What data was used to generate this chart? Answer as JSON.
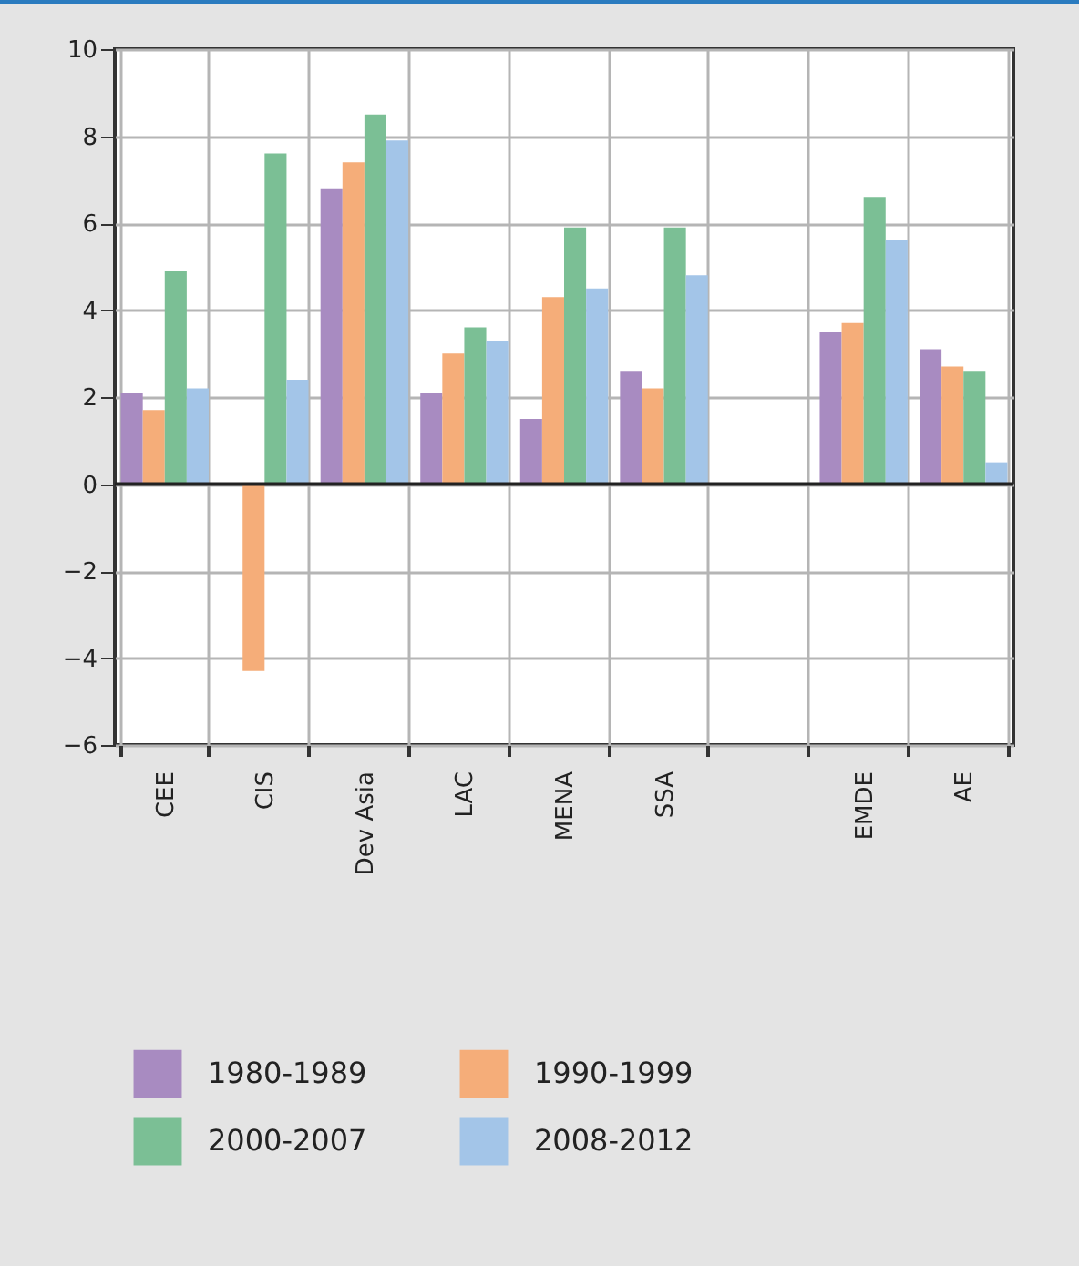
{
  "chart_data": {
    "type": "bar",
    "categories": [
      "CEE",
      "CIS",
      "Dev Asia",
      "LAC",
      "MENA",
      "SSA",
      null,
      "EMDE",
      "AE"
    ],
    "series": [
      {
        "name": "1980-1989",
        "color": "#a88bc1",
        "values": [
          2.1,
          null,
          6.8,
          2.1,
          1.5,
          2.6,
          null,
          3.5,
          3.1
        ]
      },
      {
        "name": "1990-1999",
        "color": "#f5ad79",
        "values": [
          1.7,
          -4.3,
          7.4,
          3.0,
          4.3,
          2.2,
          null,
          3.7,
          2.7
        ]
      },
      {
        "name": "2000-2007",
        "color": "#7bbf95",
        "values": [
          4.9,
          7.6,
          8.5,
          3.6,
          5.9,
          5.9,
          null,
          6.6,
          2.6
        ]
      },
      {
        "name": "2008-2012",
        "color": "#a3c5e8",
        "values": [
          2.2,
          2.4,
          7.9,
          3.3,
          4.5,
          4.8,
          null,
          5.6,
          0.5
        ]
      }
    ],
    "ylim": [
      -6,
      10
    ],
    "yticks": [
      {
        "value": -6,
        "label": "−6"
      },
      {
        "value": -4,
        "label": "−4"
      },
      {
        "value": -2,
        "label": "−2"
      },
      0,
      2,
      4,
      6,
      8,
      10
    ],
    "grid": true,
    "legend": "bottom"
  }
}
